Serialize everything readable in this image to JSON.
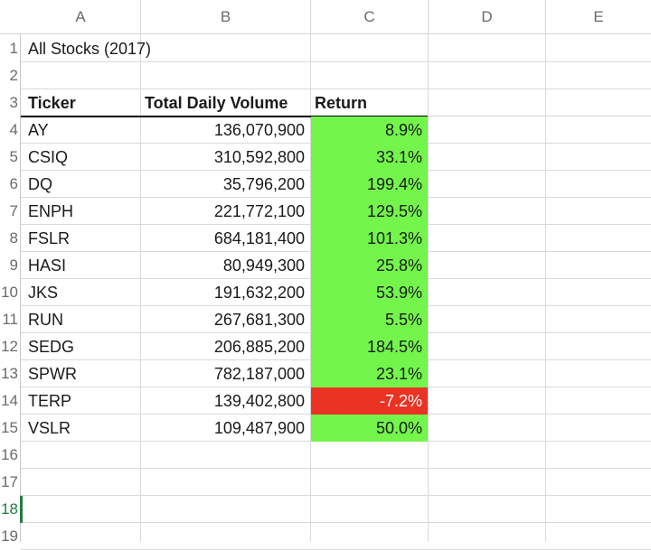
{
  "columns": [
    "A",
    "B",
    "C",
    "D",
    "E"
  ],
  "row_numbers": [
    "1",
    "2",
    "3",
    "4",
    "5",
    "6",
    "7",
    "8",
    "9",
    "10",
    "11",
    "12",
    "13",
    "14",
    "15",
    "16",
    "17",
    "18",
    "19"
  ],
  "sheet": {
    "title": "All Stocks (2017)",
    "headers": {
      "ticker": "Ticker",
      "volume": "Total Daily Volume",
      "return": "Return"
    },
    "rows": [
      {
        "ticker": "AY",
        "volume": "136,070,900",
        "return": "8.9%",
        "status": "positive"
      },
      {
        "ticker": "CSIQ",
        "volume": "310,592,800",
        "return": "33.1%",
        "status": "positive"
      },
      {
        "ticker": "DQ",
        "volume": "35,796,200",
        "return": "199.4%",
        "status": "positive"
      },
      {
        "ticker": "ENPH",
        "volume": "221,772,100",
        "return": "129.5%",
        "status": "positive"
      },
      {
        "ticker": "FSLR",
        "volume": "684,181,400",
        "return": "101.3%",
        "status": "positive"
      },
      {
        "ticker": "HASI",
        "volume": "80,949,300",
        "return": "25.8%",
        "status": "positive"
      },
      {
        "ticker": "JKS",
        "volume": "191,632,200",
        "return": "53.9%",
        "status": "positive"
      },
      {
        "ticker": "RUN",
        "volume": "267,681,300",
        "return": "5.5%",
        "status": "positive"
      },
      {
        "ticker": "SEDG",
        "volume": "206,885,200",
        "return": "184.5%",
        "status": "positive"
      },
      {
        "ticker": "SPWR",
        "volume": "782,187,000",
        "return": "23.1%",
        "status": "positive"
      },
      {
        "ticker": "TERP",
        "volume": "139,402,800",
        "return": "-7.2%",
        "status": "negative"
      },
      {
        "ticker": "VSLR",
        "volume": "109,487,900",
        "return": "50.0%",
        "status": "positive"
      }
    ]
  },
  "colors": {
    "positive_fill": "#73f54c",
    "negative_fill": "#ea3323",
    "active_row_number": "#1e7e3e"
  },
  "active_row": "18"
}
